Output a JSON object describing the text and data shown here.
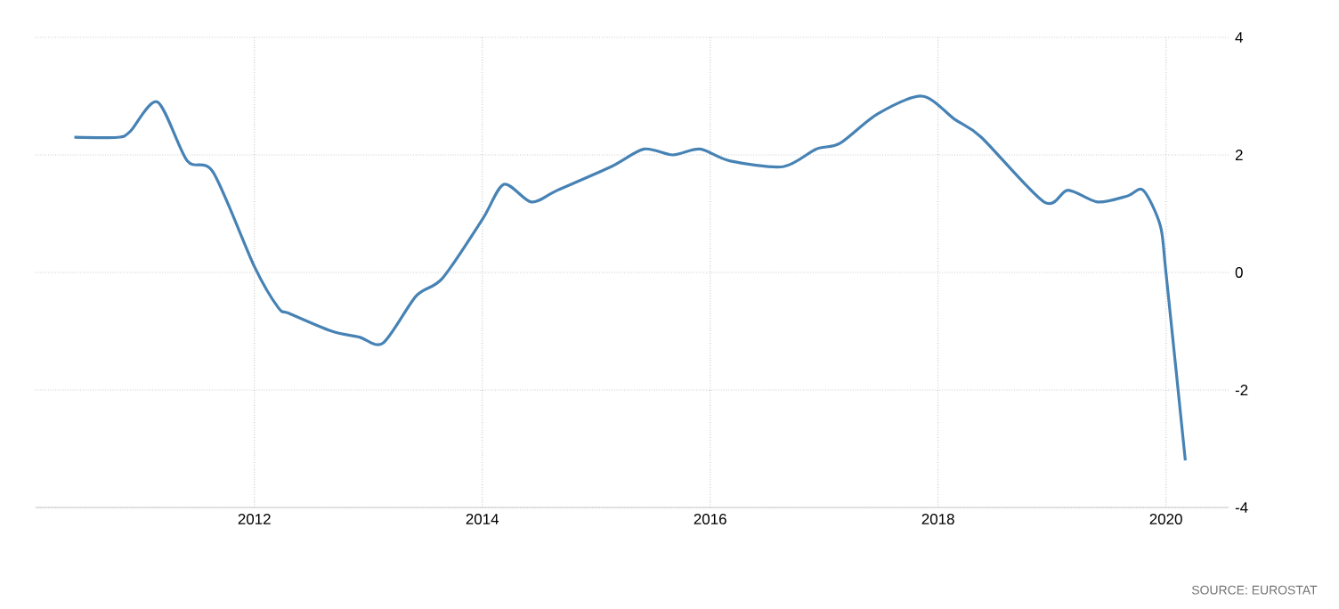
{
  "chart_data": {
    "type": "line",
    "x": [
      2010.42,
      2010.8,
      2010.91,
      2011.15,
      2011.41,
      2011.64,
      2012.0,
      2012.21,
      2012.31,
      2012.68,
      2012.92,
      2013.13,
      2013.42,
      2013.65,
      2014.0,
      2014.19,
      2014.43,
      2014.66,
      2015.13,
      2015.42,
      2015.67,
      2015.91,
      2016.17,
      2016.64,
      2016.93,
      2017.14,
      2017.47,
      2017.86,
      2018.15,
      2018.38,
      2018.93,
      2019.14,
      2019.4,
      2019.66,
      2019.8,
      2019.95,
      2020.0,
      2020.17
    ],
    "series": [
      {
        "color": "#4682b4",
        "values": [
          2.3,
          2.3,
          2.4,
          2.9,
          1.9,
          1.7,
          0.1,
          -0.6,
          -0.7,
          -1.0,
          -1.1,
          -1.2,
          -0.4,
          -0.1,
          0.9,
          1.5,
          1.2,
          1.4,
          1.8,
          2.1,
          2.0,
          2.1,
          1.9,
          1.8,
          2.1,
          2.2,
          2.7,
          3.0,
          2.6,
          2.3,
          1.2,
          1.4,
          1.2,
          1.3,
          1.4,
          0.8,
          0.0,
          -3.2
        ]
      }
    ],
    "xlim": [
      2010.08,
      2020.55
    ],
    "xticks": [
      2012,
      2014,
      2016,
      2018,
      2020
    ],
    "ylim": [
      -4,
      4
    ],
    "yticks": [
      -4,
      -2,
      0,
      2,
      4
    ],
    "grid": true,
    "line_style": "solid",
    "marker": "none",
    "annotations": [
      "SOURCE: EUROSTAT"
    ]
  }
}
